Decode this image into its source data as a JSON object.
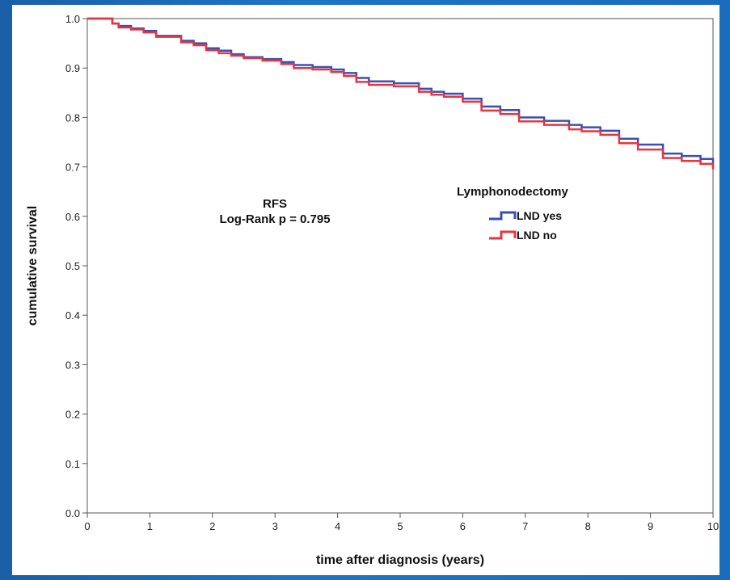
{
  "chart_data": {
    "type": "line",
    "title": "",
    "annotation": {
      "line1": "RFS",
      "line2": "Log-Rank p = 0.795"
    },
    "xlabel": "time after diagnosis (years)",
    "ylabel": "cumulative survival",
    "xlim": [
      0,
      10
    ],
    "ylim": [
      0.0,
      1.0
    ],
    "xticks": [
      0,
      1,
      2,
      3,
      4,
      5,
      6,
      7,
      8,
      9,
      10
    ],
    "yticks": [
      "0.0",
      "0.1",
      "0.2",
      "0.3",
      "0.4",
      "0.5",
      "0.6",
      "0.7",
      "0.8",
      "0.9",
      "1.0"
    ],
    "grid": false,
    "legend": {
      "title": "Lymphonodectomy",
      "position": "top-right"
    },
    "series": [
      {
        "name": "LND yes",
        "color": "#3a4fb5",
        "x": [
          0,
          0.4,
          0.5,
          0.7,
          0.9,
          1.1,
          1.5,
          1.7,
          1.9,
          2.1,
          2.3,
          2.5,
          2.8,
          3.1,
          3.3,
          3.6,
          3.9,
          4.1,
          4.3,
          4.5,
          4.9,
          5.3,
          5.5,
          5.7,
          6.0,
          6.3,
          6.6,
          6.9,
          7.3,
          7.7,
          7.9,
          8.2,
          8.5,
          8.8,
          9.2,
          9.5,
          9.8,
          10.0
        ],
        "y": [
          1.0,
          0.99,
          0.985,
          0.98,
          0.975,
          0.965,
          0.955,
          0.95,
          0.94,
          0.935,
          0.928,
          0.922,
          0.918,
          0.912,
          0.906,
          0.902,
          0.897,
          0.89,
          0.88,
          0.873,
          0.869,
          0.858,
          0.852,
          0.848,
          0.838,
          0.822,
          0.815,
          0.8,
          0.793,
          0.785,
          0.78,
          0.773,
          0.757,
          0.745,
          0.727,
          0.722,
          0.716,
          0.708
        ]
      },
      {
        "name": "LND no",
        "color": "#e8343c",
        "x": [
          0,
          0.4,
          0.5,
          0.7,
          0.9,
          1.1,
          1.5,
          1.7,
          1.9,
          2.1,
          2.3,
          2.5,
          2.8,
          3.1,
          3.3,
          3.6,
          3.9,
          4.1,
          4.3,
          4.5,
          4.9,
          5.3,
          5.5,
          5.7,
          6.0,
          6.3,
          6.6,
          6.9,
          7.3,
          7.7,
          7.9,
          8.2,
          8.5,
          8.8,
          9.2,
          9.5,
          9.8,
          10.0
        ],
        "y": [
          1.0,
          0.99,
          0.982,
          0.978,
          0.972,
          0.963,
          0.952,
          0.946,
          0.936,
          0.93,
          0.925,
          0.92,
          0.915,
          0.908,
          0.9,
          0.897,
          0.892,
          0.884,
          0.872,
          0.866,
          0.863,
          0.852,
          0.846,
          0.842,
          0.832,
          0.814,
          0.807,
          0.792,
          0.785,
          0.776,
          0.772,
          0.765,
          0.748,
          0.735,
          0.718,
          0.712,
          0.706,
          0.695
        ]
      }
    ]
  }
}
